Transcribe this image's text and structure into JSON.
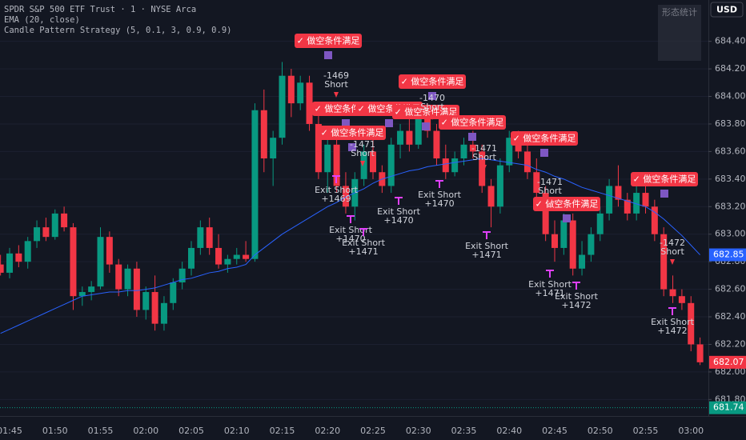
{
  "chart_data": {
    "type": "candlestick",
    "title": "SPDR S&P 500 ETF Trust · 1 · NYSE Arca",
    "strategy": "Candle Pattern Strategy (5, 0.1, 3, 0.9, 0.9)",
    "currency": "USD",
    "stats_panel_title": "形态统计",
    "up_color": "#089981",
    "down_color": "#f23645",
    "categories": [
      null,
      "01:45",
      null,
      null,
      null,
      null,
      "01:50",
      null,
      null,
      null,
      null,
      "01:55",
      null,
      null,
      null,
      null,
      "02:00",
      null,
      null,
      null,
      null,
      "02:05",
      null,
      null,
      null,
      null,
      "02:10",
      null,
      null,
      null,
      null,
      "02:15",
      null,
      null,
      null,
      null,
      "02:20",
      null,
      null,
      null,
      null,
      "02:25",
      null,
      null,
      null,
      null,
      "02:30",
      null,
      null,
      null,
      null,
      "02:35",
      null,
      null,
      null,
      null,
      "02:40",
      null,
      null,
      null,
      null,
      "02:45",
      null,
      null,
      null,
      null,
      "02:50",
      null,
      null,
      null,
      null,
      "02:55",
      null,
      null,
      null,
      null,
      "03:00",
      null
    ],
    "open": [
      682.78,
      682.72,
      682.86,
      682.8,
      682.95,
      683.05,
      682.98,
      683.15,
      683.05,
      682.55,
      682.58,
      682.62,
      682.98,
      682.78,
      682.6,
      682.75,
      682.45,
      682.58,
      682.35,
      682.5,
      682.65,
      682.75,
      682.9,
      683.05,
      682.9,
      682.78,
      682.82,
      682.85,
      682.82,
      683.9,
      683.55,
      683.7,
      684.15,
      683.95,
      684.1,
      683.8,
      683.45,
      683.65,
      683.35,
      683.2,
      683.4,
      683.6,
      683.45,
      683.35,
      683.65,
      683.75,
      683.65,
      683.9,
      683.75,
      683.55,
      683.45,
      683.55,
      683.65,
      683.6,
      683.35,
      683.2,
      683.5,
      683.7,
      683.6,
      683.45,
      683.3,
      683.0,
      682.9,
      683.1,
      682.75,
      682.85,
      683.0,
      683.15,
      683.35,
      683.25,
      683.15,
      683.3,
      683.2,
      683.0,
      682.6,
      682.55,
      682.5,
      682.2
    ],
    "high": [
      682.85,
      682.9,
      682.92,
      682.98,
      683.1,
      683.12,
      683.18,
      683.2,
      683.08,
      682.62,
      682.66,
      683.05,
      683.02,
      682.82,
      682.78,
      682.8,
      682.62,
      682.7,
      682.55,
      682.68,
      682.8,
      682.95,
      683.1,
      683.12,
      683.0,
      682.85,
      682.9,
      682.95,
      683.95,
      684.05,
      683.75,
      684.25,
      684.2,
      684.15,
      684.15,
      683.9,
      683.7,
      683.7,
      683.45,
      683.45,
      683.65,
      683.7,
      683.5,
      683.7,
      683.8,
      683.85,
      683.95,
      683.95,
      683.8,
      683.65,
      683.6,
      683.7,
      683.75,
      683.65,
      683.4,
      683.55,
      683.75,
      683.75,
      683.7,
      683.55,
      683.35,
      683.1,
      683.15,
      683.15,
      682.95,
      683.05,
      683.2,
      683.4,
      683.5,
      683.3,
      683.35,
      683.4,
      683.25,
      683.05,
      682.7,
      682.6,
      682.55,
      682.25
    ],
    "low": [
      682.7,
      682.68,
      682.76,
      682.75,
      682.9,
      682.95,
      682.96,
      683.02,
      682.45,
      682.48,
      682.52,
      682.6,
      682.72,
      682.55,
      682.55,
      682.4,
      682.38,
      682.3,
      682.3,
      682.45,
      682.6,
      682.7,
      682.85,
      682.85,
      682.75,
      682.72,
      682.78,
      682.8,
      682.8,
      683.45,
      683.35,
      683.65,
      683.85,
      683.9,
      683.75,
      683.4,
      683.3,
      683.3,
      683.15,
      683.1,
      683.35,
      683.4,
      683.3,
      683.3,
      683.55,
      683.6,
      683.62,
      683.7,
      683.5,
      683.4,
      683.42,
      683.5,
      683.55,
      683.3,
      683.05,
      683.15,
      683.45,
      683.55,
      683.4,
      683.25,
      682.95,
      682.8,
      682.85,
      682.7,
      682.7,
      682.8,
      682.95,
      683.1,
      683.2,
      683.1,
      683.1,
      683.15,
      682.95,
      682.55,
      682.5,
      682.45,
      682.15,
      682.05
    ],
    "close": [
      682.72,
      682.86,
      682.8,
      682.95,
      683.05,
      682.98,
      683.15,
      683.05,
      682.55,
      682.58,
      682.62,
      682.98,
      682.78,
      682.6,
      682.75,
      682.45,
      682.58,
      682.35,
      682.5,
      682.65,
      682.75,
      682.9,
      683.05,
      682.9,
      682.78,
      682.82,
      682.85,
      682.82,
      683.9,
      683.55,
      683.7,
      684.15,
      683.95,
      684.1,
      683.8,
      683.45,
      683.65,
      683.35,
      683.2,
      683.4,
      683.6,
      683.45,
      683.35,
      683.65,
      683.75,
      683.65,
      683.9,
      683.75,
      683.55,
      683.45,
      683.55,
      683.65,
      683.6,
      683.35,
      683.2,
      683.5,
      683.7,
      683.6,
      683.45,
      683.3,
      683.0,
      682.9,
      683.1,
      682.75,
      682.85,
      683.0,
      683.15,
      683.35,
      683.25,
      683.15,
      683.3,
      683.2,
      683.0,
      682.6,
      682.55,
      682.5,
      682.2,
      682.07
    ],
    "ema": {
      "name": "EMA (20, close)",
      "color": "#2962ff",
      "values": [
        682.28,
        682.31,
        682.34,
        682.37,
        682.4,
        682.43,
        682.46,
        682.49,
        682.52,
        682.55,
        682.56,
        682.57,
        682.58,
        682.58,
        682.59,
        682.59,
        682.6,
        682.61,
        682.63,
        682.65,
        682.67,
        682.68,
        682.7,
        682.72,
        682.73,
        682.75,
        682.76,
        682.78,
        682.85,
        682.9,
        682.95,
        683.0,
        683.04,
        683.08,
        683.12,
        683.16,
        683.2,
        683.23,
        683.27,
        683.3,
        683.33,
        683.37,
        683.4,
        683.42,
        683.44,
        683.46,
        683.47,
        683.49,
        683.5,
        683.51,
        683.52,
        683.53,
        683.54,
        683.55,
        683.54,
        683.53,
        683.52,
        683.51,
        683.5,
        683.47,
        683.45,
        683.42,
        683.4,
        683.37,
        683.34,
        683.32,
        683.3,
        683.28,
        683.26,
        683.24,
        683.22,
        683.2,
        683.16,
        683.11,
        683.05,
        682.99,
        682.92,
        682.85
      ]
    },
    "ylim": [
      681.68,
      684.7
    ],
    "yticks": [
      {
        "value": 681.8,
        "label": "681.80"
      },
      {
        "value": 682.0,
        "label": "682.00"
      },
      {
        "value": 682.2,
        "label": "682.20"
      },
      {
        "value": 682.4,
        "label": "682.40"
      },
      {
        "value": 682.6,
        "label": "682.60"
      },
      {
        "value": 682.8,
        "label": "682.80"
      },
      {
        "value": 683.0,
        "label": "683.00"
      },
      {
        "value": 683.2,
        "label": "683.20"
      },
      {
        "value": 683.4,
        "label": "683.40"
      },
      {
        "value": 683.6,
        "label": "683.60"
      },
      {
        "value": 683.8,
        "label": "683.80"
      },
      {
        "value": 684.0,
        "label": "684.00"
      },
      {
        "value": 684.2,
        "label": "684.20"
      },
      {
        "value": 684.4,
        "label": "684.40"
      }
    ],
    "price_tags": [
      {
        "value": 682.85,
        "label": "682.85",
        "color": "#2962ff"
      },
      {
        "value": 682.07,
        "label": "682.07",
        "color": "#f23645"
      },
      {
        "value": 681.74,
        "label": "681.74",
        "color": "#089981"
      }
    ],
    "entry_signals": [
      "✓ 做空条件满足",
      "✓ 做空条件满足",
      "✓ 做空条件满足",
      "✓ 做空条件满足",
      "✓ 做空条件满足",
      "✓ 做空条件满足",
      "✓ 做空条件满足",
      "✓ 做空条件满足",
      "✓ 做空条件满足",
      "✓ 做空条件满足"
    ],
    "short_labels": [
      {
        "id": "-1469",
        "side": "Short"
      },
      {
        "id": "-1470",
        "side": "Short"
      },
      {
        "id": "-1471",
        "side": "Short"
      },
      {
        "id": "-1472",
        "side": "Short"
      },
      {
        "id": "-1471",
        "side": "Short"
      },
      {
        "id": "-1471",
        "side": "Short"
      }
    ],
    "exit_labels": [
      {
        "text": "Exit Short",
        "id": "+1469"
      },
      {
        "text": "Exit Short",
        "id": "+1470"
      },
      {
        "text": "Exit Short",
        "id": "+1470"
      },
      {
        "text": "Exit Short",
        "id": "+1471"
      },
      {
        "text": "Exit Short",
        "id": "+1470"
      },
      {
        "text": "Exit Short",
        "id": "+1471"
      },
      {
        "text": "Exit Short",
        "id": "+1471"
      },
      {
        "text": "Exit Short",
        "id": "+1472"
      },
      {
        "text": "Exit Short",
        "id": "+1472"
      }
    ]
  }
}
